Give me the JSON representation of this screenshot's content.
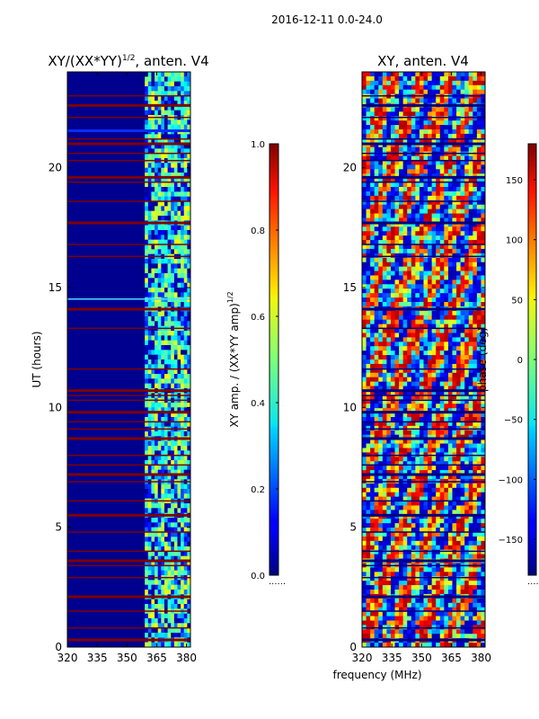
{
  "figure_title": "2016-12-11 0.0-24.0",
  "shared_xlabel": "frequency (MHz)",
  "chart_data": [
    {
      "type": "heatmap",
      "title_main": "XY/(XX*YY)",
      "title_exp": "1/2",
      "title_suffix": ", anten. V4",
      "xlabel": "",
      "ylabel": "UT (hours)",
      "xlim": [
        320,
        382
      ],
      "ylim": [
        0,
        24
      ],
      "xticks": [
        320,
        335,
        350,
        365,
        380
      ],
      "yticks": [
        0,
        5,
        10,
        15,
        20
      ],
      "data_band_start_mhz": 359,
      "colormap": "jet",
      "colorbar": {
        "label_main": "XY amp. / (XX*YY amp)",
        "label_exp": "1/2",
        "range": [
          0.0,
          1.0
        ],
        "ticks": [
          "0.0",
          "0.2",
          "0.4",
          "0.6",
          "0.8",
          "1.0"
        ],
        "tick_values": [
          0.0,
          0.2,
          0.4,
          0.6,
          0.8,
          1.0
        ],
        "offset_text": "......"
      }
    },
    {
      "type": "heatmap",
      "title_main": "XY, anten. V4",
      "xlabel": "frequency (MHz)",
      "ylabel": "",
      "xlim": [
        320,
        382
      ],
      "ylim": [
        0,
        24
      ],
      "xticks": [
        320,
        335,
        350,
        365,
        380
      ],
      "yticks": [
        0,
        5,
        10,
        15,
        20
      ],
      "colormap": "jet",
      "colorbar": {
        "label": "phase (deg)",
        "range": [
          -180,
          180
        ],
        "ticks": [
          "150",
          "100",
          "50",
          "0",
          "−50",
          "−100",
          "−150"
        ],
        "tick_values": [
          150,
          100,
          50,
          0,
          -50,
          -100,
          -150
        ],
        "offset_text": "......"
      }
    }
  ],
  "flagged_hours": [
    0.3,
    0.8,
    1.5,
    2.1,
    2.9,
    3.4,
    3.6,
    4.0,
    4.8,
    5.5,
    6.1,
    6.9,
    7.2,
    7.6,
    8.0,
    8.7,
    9.1,
    9.4,
    9.8,
    10.3,
    10.5,
    10.7,
    11.6,
    13.3,
    14.1,
    16.3,
    16.8,
    17.7,
    18.6,
    19.4,
    19.6,
    20.3,
    20.6,
    21.0,
    21.2,
    22.1,
    22.6,
    23.0
  ]
}
